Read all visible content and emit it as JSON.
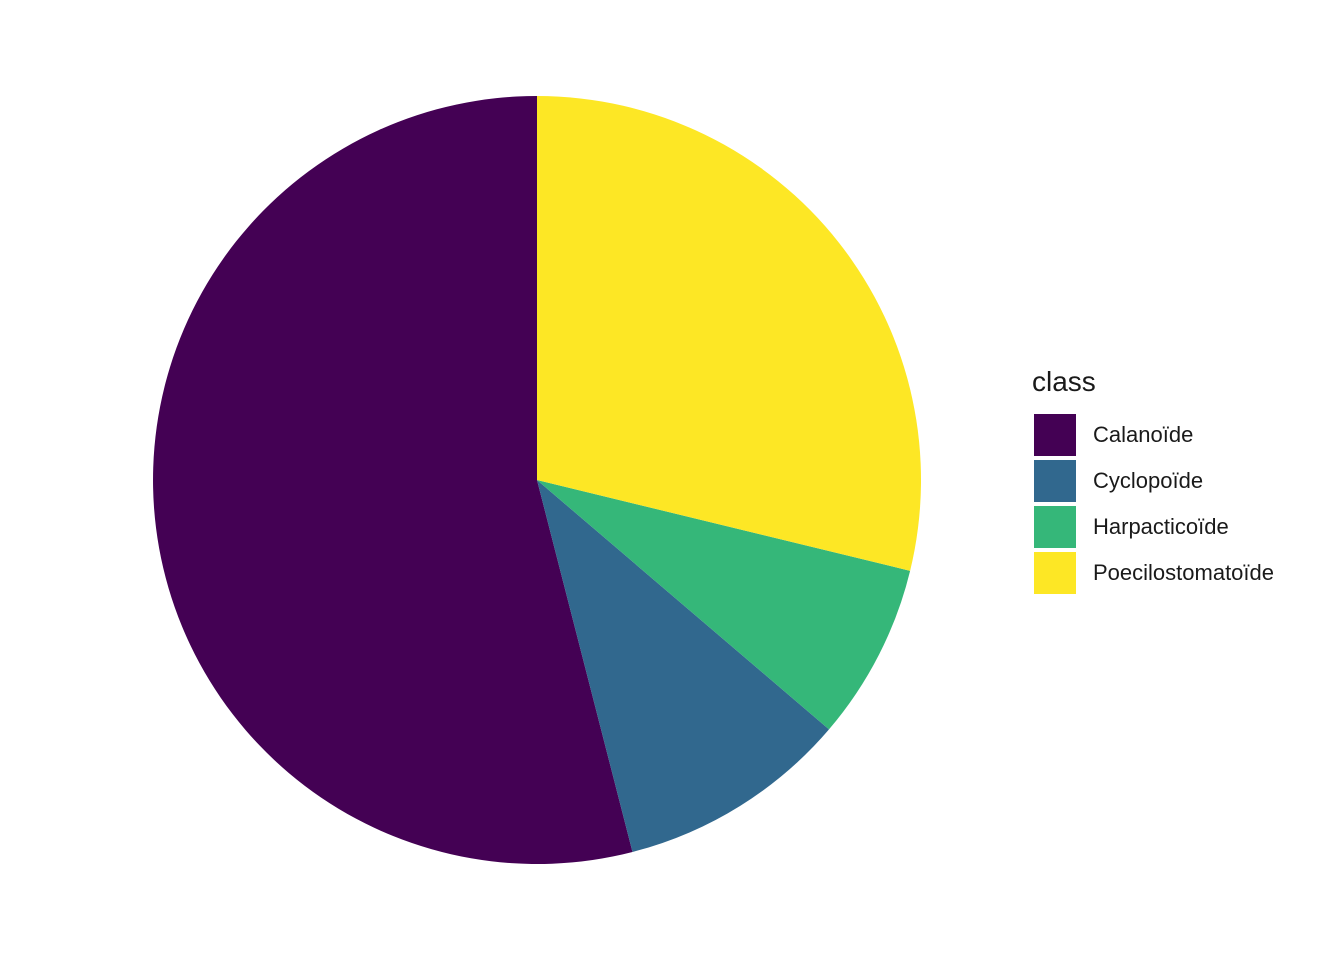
{
  "chart_data": {
    "type": "pie",
    "title": "",
    "legend_position": "right",
    "legend_title": "class",
    "slices": [
      {
        "label": "Calanoïde",
        "value": 0.54,
        "color": "#440154"
      },
      {
        "label": "Cyclopoïde",
        "value": 0.0975,
        "color": "#31688E"
      },
      {
        "label": "Harpacticoïde",
        "value": 0.0745,
        "color": "#35B779"
      },
      {
        "label": "Poecilostomatoïde",
        "value": 0.288,
        "color": "#FDE725"
      }
    ],
    "start_angle_deg": 0,
    "direction": "counterclockwise"
  }
}
